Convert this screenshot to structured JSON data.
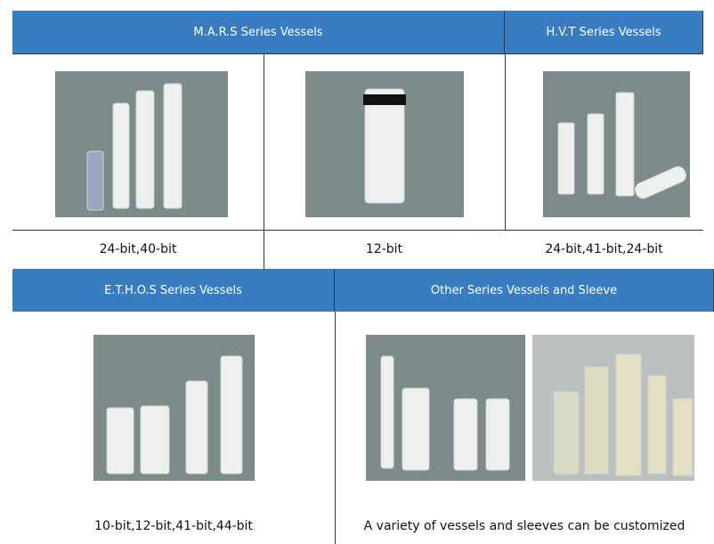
{
  "table_top": {
    "headers": [
      "M.A.R.S Series Vessels",
      "H.V.T Series Vessels"
    ],
    "captions": [
      "24-bit,40-bit",
      "12-bit",
      "24-bit,41-bit,24-bit"
    ]
  },
  "table_bottom": {
    "headers": [
      "E.T.H.O.S Series Vessels",
      "Other Series Vessels and Sleeve"
    ],
    "captions": [
      "10-bit,12-bit,41-bit,44-bit",
      "A variety of vessels and sleeves can be customized"
    ]
  }
}
